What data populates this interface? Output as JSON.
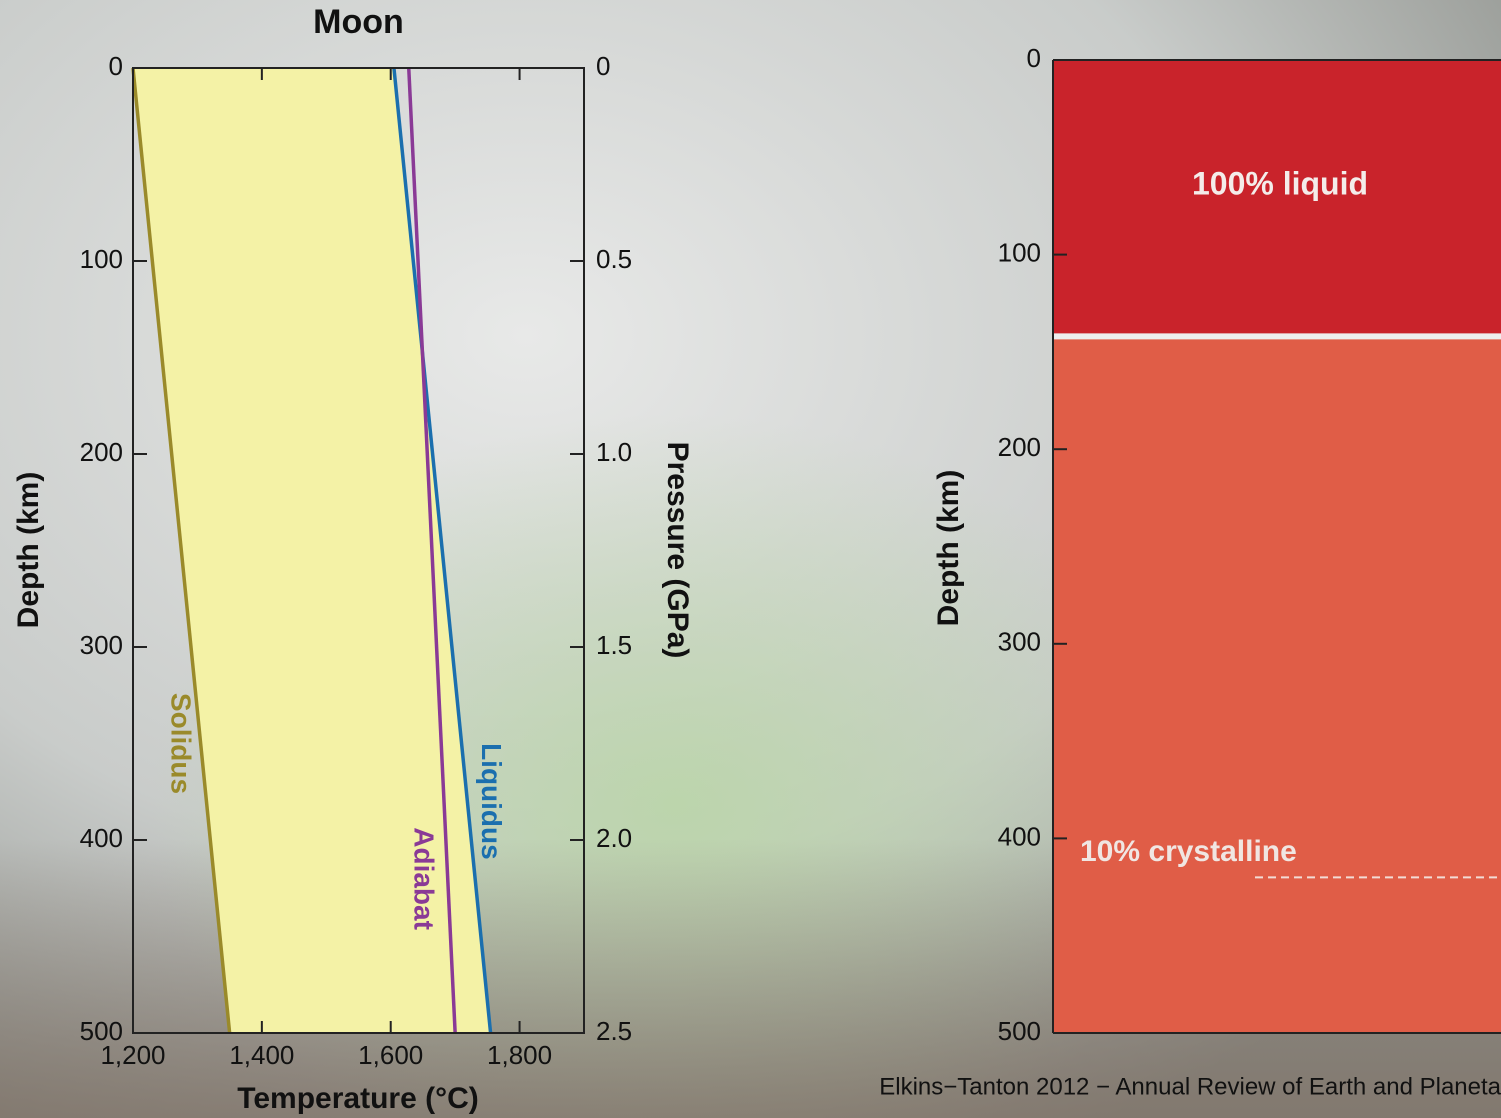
{
  "chart_data": [
    {
      "type": "line",
      "title": "Moon",
      "x_label": "Temperature (°C)",
      "y_label": "Depth (km)",
      "y2_label": "Pressure (GPa)",
      "xlim": [
        1200,
        1900
      ],
      "xticks": [
        {
          "value": 1200,
          "label": "1,200"
        },
        {
          "value": 1400,
          "label": "1,400"
        },
        {
          "value": 1600,
          "label": "1,600"
        },
        {
          "value": 1800,
          "label": "1,800"
        }
      ],
      "ylim": [
        0,
        500
      ],
      "yticks": [
        0,
        100,
        200,
        300,
        400,
        500
      ],
      "y_inverted": true,
      "y2lim": [
        0,
        2.5
      ],
      "y2ticks": [
        0,
        0.5,
        {
          "value": 1,
          "label": "1.0"
        },
        1.5,
        {
          "value": 2,
          "label": "2.0"
        },
        2.5
      ],
      "fill_color": "#f4f2a6",
      "series": [
        {
          "name": "Solidus",
          "color": "#9a8a2a",
          "x": [
            1200,
            1350
          ],
          "y": [
            0,
            500
          ]
        },
        {
          "name": "Liquidus",
          "color": "#1b6fae",
          "x": [
            1605,
            1755
          ],
          "y": [
            0,
            500
          ]
        },
        {
          "name": "Adiabat",
          "color": "#8a3a96",
          "x": [
            1628,
            1700
          ],
          "y": [
            0,
            500
          ]
        }
      ]
    },
    {
      "type": "layers",
      "y_label": "Depth (km)",
      "ylim": [
        0,
        500
      ],
      "yticks": [
        0,
        100,
        200,
        300,
        400,
        500
      ],
      "y_inverted": true,
      "layers": [
        {
          "label": "100% liquid",
          "top": 0,
          "bottom": 142,
          "color": "#c9232b"
        },
        {
          "top": 142,
          "bottom": 500,
          "color": "#e05d47"
        }
      ],
      "annotations": [
        {
          "label": "10% crystalline",
          "depth": 420
        }
      ]
    }
  ],
  "caption": "Elkins−Tanton 2012 − Annual Review of Earth and Planeta"
}
